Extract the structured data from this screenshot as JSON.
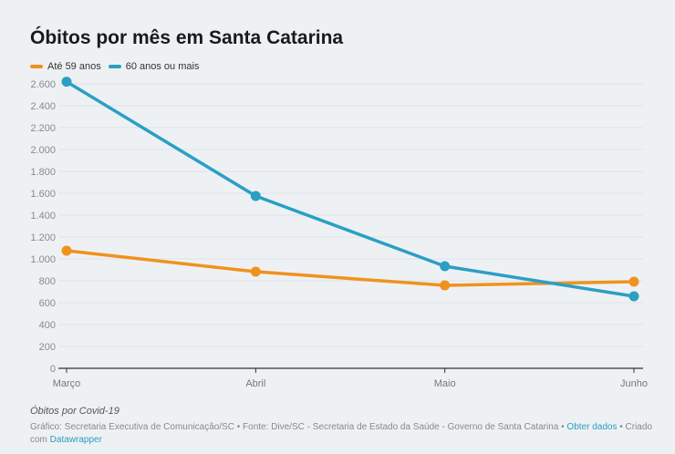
{
  "chart_data": {
    "type": "line",
    "title": "Óbitos por mês em Santa Catarina",
    "xlabel": "",
    "ylabel": "",
    "categories": [
      "Março",
      "Abril",
      "Maio",
      "Junho"
    ],
    "series": [
      {
        "name": "Até 59 anos",
        "color": "#f0921e",
        "values": [
          1075,
          883,
          758,
          792
        ]
      },
      {
        "name": "60 anos ou mais",
        "color": "#2b9fc4",
        "values": [
          2620,
          1575,
          933,
          658
        ]
      }
    ],
    "ylim": [
      0,
      2600
    ],
    "yticks": [
      0,
      200,
      400,
      600,
      800,
      1000,
      1200,
      1400,
      1600,
      1800,
      2000,
      2200,
      2400,
      2600
    ],
    "ytick_labels": [
      "0",
      "200",
      "400",
      "600",
      "800",
      "1.000",
      "1.200",
      "1.400",
      "1.600",
      "1.800",
      "2.000",
      "2.200",
      "2.400",
      "2.600"
    ],
    "grid": true,
    "legend_position": "top-left"
  },
  "notes": "Óbitos por Covid-19",
  "source": {
    "text": "Gráfico: Secretaria Executiva de Comunicação/SC • Fonte: Dive/SC - Secretaria de Estado da Saúde - Governo de Santa Catarina • ",
    "get_data_link": "Obter dados",
    "created_with": " • Criado com ",
    "datawrapper_link": "Datawrapper"
  }
}
